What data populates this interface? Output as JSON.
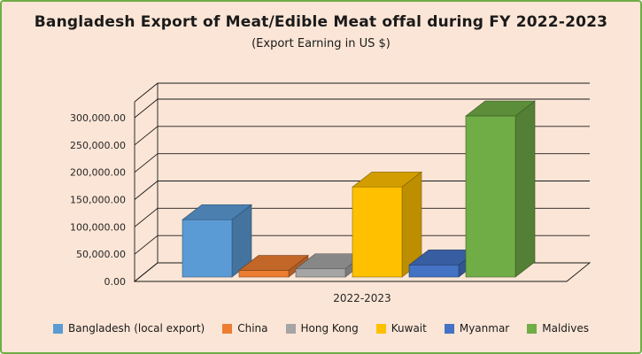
{
  "panel": {
    "background": "#FBE5D6",
    "border_color": "#70AD47"
  },
  "chart_data": {
    "type": "bar",
    "projection": "3d",
    "title": "Bangladesh Export of Meat/Edible Meat offal during FY 2022-2023",
    "subtitle": "(Export Earning in US $)",
    "categories": [
      "2022-2023"
    ],
    "series": [
      {
        "name": "Bangladesh (local export)",
        "values": [
          105000
        ],
        "color": "#5B9BD5"
      },
      {
        "name": "China",
        "values": [
          12000
        ],
        "color": "#ED7D31"
      },
      {
        "name": "Hong Kong",
        "values": [
          15000
        ],
        "color": "#A5A5A5"
      },
      {
        "name": "Kuwait",
        "values": [
          165000
        ],
        "color": "#FFC000"
      },
      {
        "name": "Myanmar",
        "values": [
          22000
        ],
        "color": "#4472C4"
      },
      {
        "name": "Maldives",
        "values": [
          295000
        ],
        "color": "#70AD47"
      }
    ],
    "xlabel": "",
    "ylabel": "",
    "ylim": [
      0,
      300000
    ],
    "grid": true,
    "legend_position": "bottom",
    "y_ticks": [
      {
        "value": 0,
        "label": "0.00"
      },
      {
        "value": 50000,
        "label": "50,000.00"
      },
      {
        "value": 100000,
        "label": "100,000.00"
      },
      {
        "value": 150000,
        "label": "150,000.00"
      },
      {
        "value": 200000,
        "label": "200,000.00"
      },
      {
        "value": 250000,
        "label": "250,000.00"
      },
      {
        "value": 300000,
        "label": "300,000.00"
      }
    ]
  }
}
